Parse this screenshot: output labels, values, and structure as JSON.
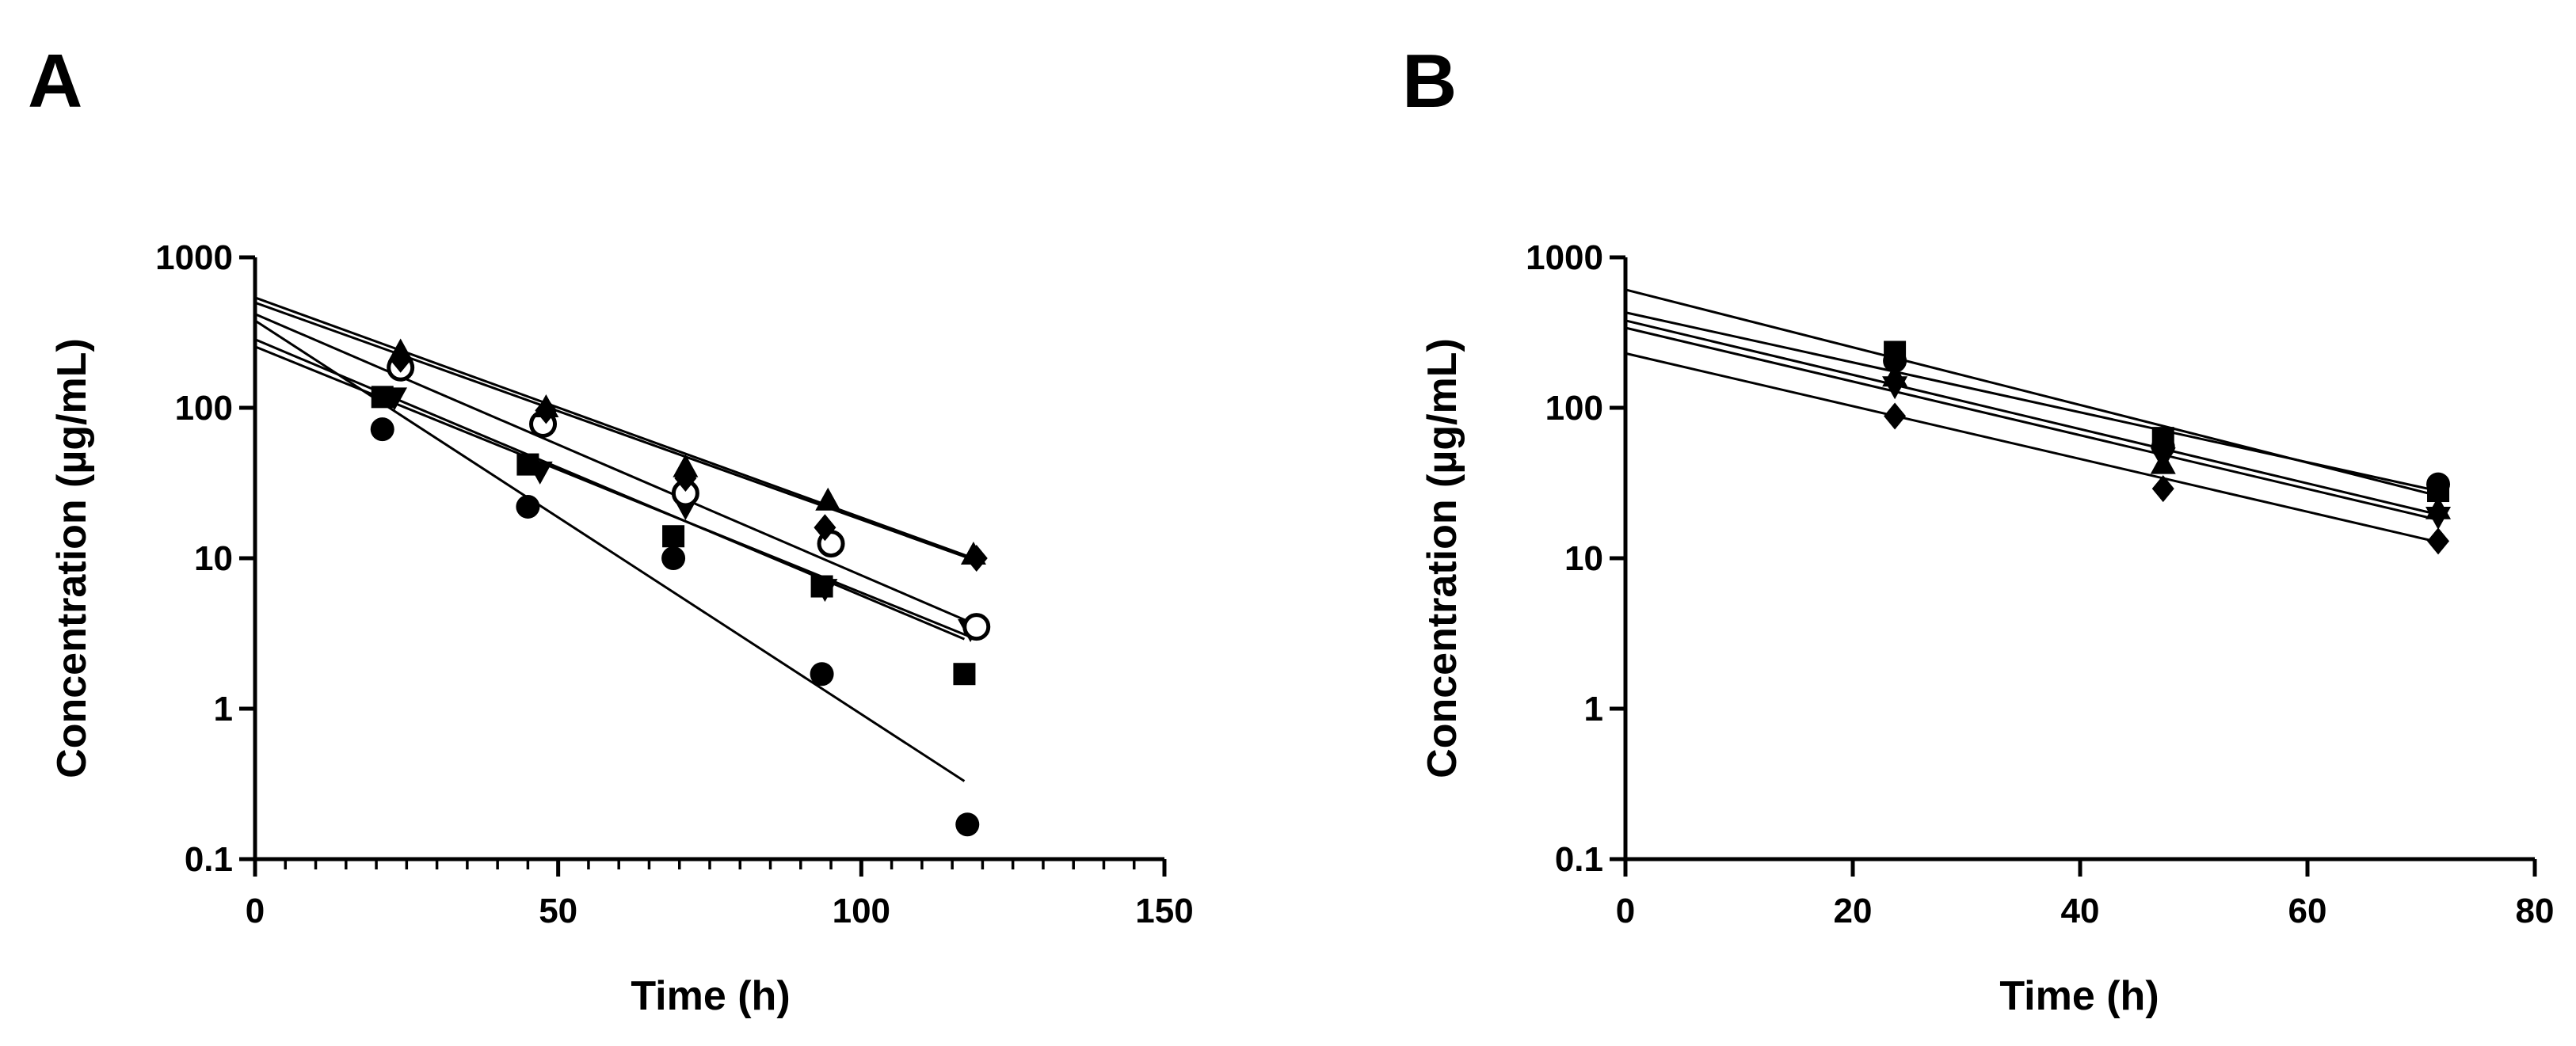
{
  "figure": {
    "background": "#ffffff",
    "ink": "#000000"
  },
  "chart_data": [
    {
      "type": "scatter",
      "panel": "A",
      "xlabel": "Time (h)",
      "ylabel": "Concentration (µg/mL)",
      "yscale": "log",
      "xlim": [
        0,
        150
      ],
      "ylim": [
        0.1,
        1000
      ],
      "xticks": [
        0,
        50,
        100,
        150
      ],
      "xtick_labels": [
        "0",
        "50",
        "100",
        "150"
      ],
      "x_minor_step": 5,
      "yticks": [
        0.1,
        1,
        10,
        100,
        1000
      ],
      "ytick_labels": [
        "0.1",
        "1",
        "10",
        "100",
        "1000"
      ],
      "grid": false,
      "legend": "none",
      "series": [
        {
          "name": "filled circle",
          "marker": "circle",
          "points": [
            [
              21,
              72
            ],
            [
              45,
              22
            ],
            [
              69,
              10
            ],
            [
              93.5,
              1.7
            ],
            [
              117.5,
              0.17
            ]
          ],
          "fit": [
            [
              0,
              380
            ],
            [
              117,
              0.33
            ]
          ]
        },
        {
          "name": "filled square",
          "marker": "square",
          "points": [
            [
              21,
              118
            ],
            [
              45,
              42
            ],
            [
              69,
              14
            ],
            [
              93.5,
              6.5
            ],
            [
              117,
              1.7
            ]
          ],
          "fit": [
            [
              0,
              285
            ],
            [
              117,
              2.9
            ]
          ]
        },
        {
          "name": "filled down-triangle",
          "marker": "triangle-down",
          "points": [
            [
              23,
              118
            ],
            [
              47,
              38
            ],
            [
              71,
              22
            ],
            [
              94,
              6.3
            ],
            [
              118,
              3.4
            ]
          ],
          "fit": [
            [
              0,
              255
            ],
            [
              118,
              3.0
            ]
          ]
        },
        {
          "name": "open circle",
          "marker": "circle-open",
          "points": [
            [
              24,
              185
            ],
            [
              47.5,
              78
            ],
            [
              71,
              27
            ],
            [
              95,
              12.5
            ],
            [
              119,
              3.5
            ]
          ],
          "fit": [
            [
              0,
              420
            ],
            [
              119,
              3.6
            ]
          ]
        },
        {
          "name": "filled up-triangle",
          "marker": "triangle-up",
          "points": [
            [
              24,
              235
            ],
            [
              48,
              100
            ],
            [
              71,
              40
            ],
            [
              94.5,
              24
            ],
            [
              118.5,
              10.5
            ]
          ],
          "fit": [
            [
              0,
              540
            ],
            [
              118.5,
              10.0
            ]
          ]
        },
        {
          "name": "filled diamond",
          "marker": "diamond",
          "points": [
            [
              24,
              210
            ],
            [
              48,
              96
            ],
            [
              71,
              34
            ],
            [
              94,
              16
            ],
            [
              119,
              10
            ]
          ],
          "fit": [
            [
              0,
              500
            ],
            [
              119,
              9.6
            ]
          ]
        }
      ]
    },
    {
      "type": "scatter",
      "panel": "B",
      "xlabel": "Time (h)",
      "ylabel": "Concentration (µg/mL)",
      "yscale": "log",
      "xlim": [
        0,
        80
      ],
      "ylim": [
        0.1,
        1000
      ],
      "xticks": [
        0,
        20,
        40,
        60,
        80
      ],
      "xtick_labels": [
        "0",
        "20",
        "40",
        "60",
        "80"
      ],
      "x_minor_step": 0,
      "yticks": [
        0.1,
        1,
        10,
        100,
        1000
      ],
      "ytick_labels": [
        "0.1",
        "1",
        "10",
        "100",
        "1000"
      ],
      "grid": false,
      "legend": "none",
      "series": [
        {
          "name": "filled square",
          "marker": "square",
          "points": [
            [
              23.7,
              235
            ],
            [
              47.3,
              63
            ],
            [
              71.5,
              28
            ]
          ],
          "fit": [
            [
              0,
              610
            ],
            [
              71.5,
              26
            ]
          ]
        },
        {
          "name": "filled circle",
          "marker": "circle",
          "points": [
            [
              23.7,
              205
            ],
            [
              47.3,
              55
            ],
            [
              71.5,
              31
            ]
          ],
          "fit": [
            [
              0,
              430
            ],
            [
              71.5,
              28
            ]
          ]
        },
        {
          "name": "filled down-triangle",
          "marker": "triangle-down",
          "points": [
            [
              23.7,
              140
            ],
            [
              47.3,
              47
            ],
            [
              71.5,
              19
            ]
          ],
          "fit": [
            [
              0,
              380
            ],
            [
              71.5,
              19.5
            ]
          ]
        },
        {
          "name": "filled up-triangle",
          "marker": "triangle-up",
          "points": [
            [
              23.7,
              160
            ],
            [
              47.3,
              42
            ],
            [
              71.5,
              21
            ]
          ],
          "fit": [
            [
              0,
              340
            ],
            [
              71.5,
              18
            ]
          ]
        },
        {
          "name": "filled diamond",
          "marker": "diamond",
          "points": [
            [
              23.7,
              88
            ],
            [
              47.3,
              29
            ],
            [
              71.5,
              13
            ]
          ],
          "fit": [
            [
              0,
              230
            ],
            [
              71.5,
              12.8
            ]
          ]
        }
      ]
    }
  ]
}
